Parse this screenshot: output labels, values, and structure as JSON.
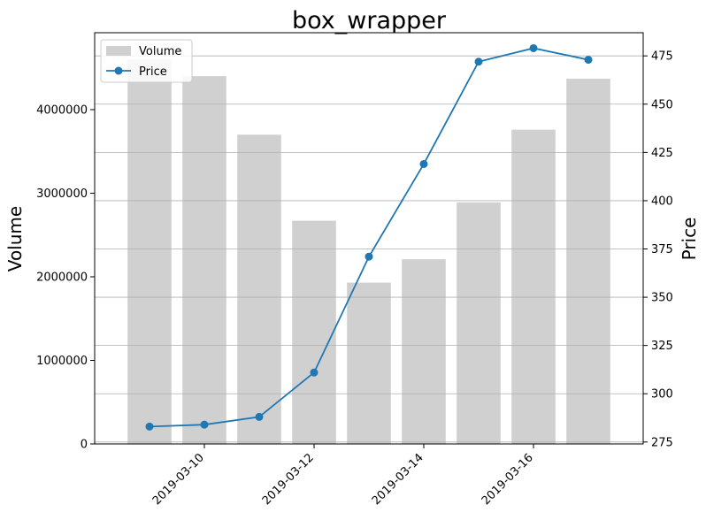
{
  "chart_data": {
    "type": "bar",
    "title": "box_wrapper",
    "x": [
      "2019-03-09",
      "2019-03-10",
      "2019-03-11",
      "2019-03-12",
      "2019-03-13",
      "2019-03-14",
      "2019-03-15",
      "2019-03-16",
      "2019-03-17"
    ],
    "xtick_labels": [
      "2019-03-10",
      "2019-03-12",
      "2019-03-14",
      "2019-03-16"
    ],
    "xlim": [
      "2019-03-08",
      "2019-03-18"
    ],
    "ylabel": "Volume",
    "y2label": "Price",
    "ylim": [
      0,
      4920000
    ],
    "y2lim": [
      274,
      487
    ],
    "yticks": [
      0,
      1000000,
      2000000,
      3000000,
      4000000
    ],
    "y2ticks": [
      275,
      300,
      325,
      350,
      375,
      400,
      425,
      450,
      475
    ],
    "grid": "right-axis horizontal",
    "legend_position": "top-left",
    "series": [
      {
        "name": "Volume",
        "type": "bar",
        "axis": "left",
        "color": "#d0d0d0",
        "values": [
          4600000,
          4400000,
          3700000,
          2670000,
          1930000,
          2210000,
          2890000,
          3760000,
          4370000
        ]
      },
      {
        "name": "Price",
        "type": "line",
        "axis": "right",
        "color": "#1f77b4",
        "marker": "circle",
        "values": [
          283,
          284,
          288,
          311,
          371,
          419,
          472,
          479,
          473
        ]
      }
    ]
  }
}
